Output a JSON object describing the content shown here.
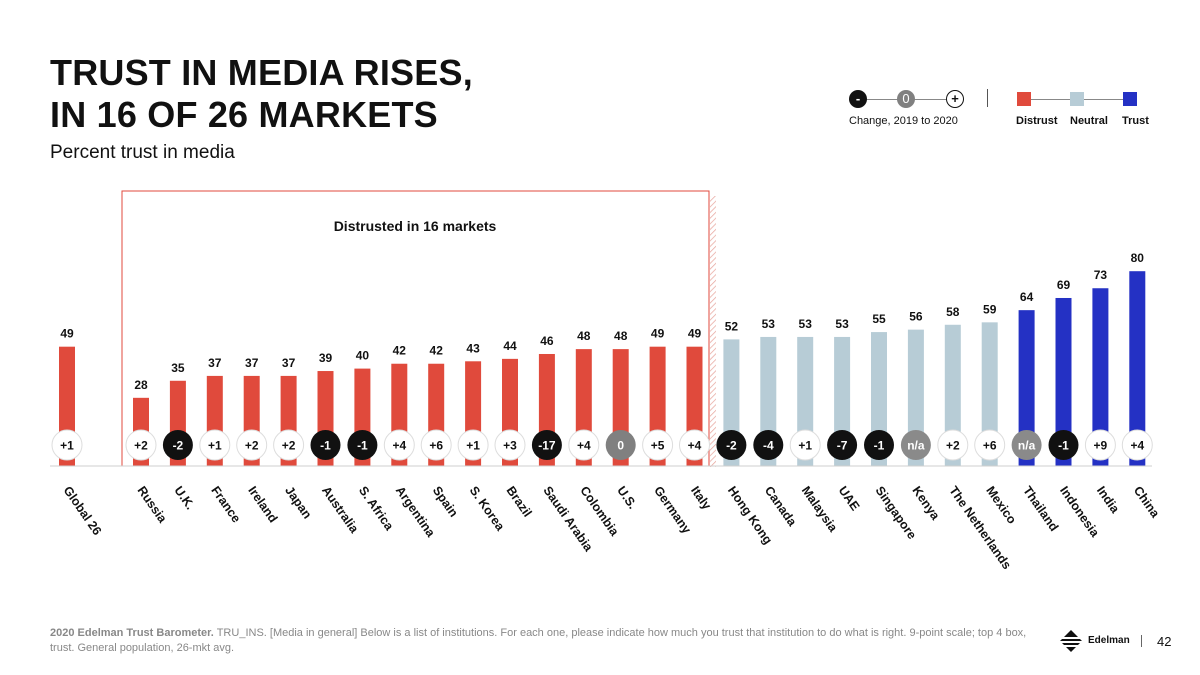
{
  "title_line1": "TRUST IN MEDIA RISES,",
  "title_line2": "IN 16 OF 26 MARKETS",
  "subtitle": "Percent trust in media",
  "legend": {
    "change_minus": "-",
    "change_zero": "0",
    "change_plus": "+",
    "change_label": "Change, 2019 to 2020",
    "distrust_label": "Distrust",
    "neutral_label": "Neutral",
    "trust_label": "Trust"
  },
  "colors": {
    "distrust": "#e04a3c",
    "neutral": "#b7ccd6",
    "trust": "#2431c4",
    "change_negative": "#111111",
    "change_zero": "#808080",
    "change_na": "#8a8a8a",
    "change_positive": "#ffffff"
  },
  "chart_data": {
    "type": "bar",
    "title": "Percent trust in media",
    "annotation": "Distrusted in 16 markets",
    "categories": [
      "Global 26",
      "Russia",
      "U.K.",
      "France",
      "Ireland",
      "Japan",
      "Australia",
      "S. Africa",
      "Argentina",
      "Spain",
      "S. Korea",
      "Brazil",
      "Saudi Arabia",
      "Colombia",
      "U.S.",
      "Germany",
      "Italy",
      "Hong Kong",
      "Canada",
      "Malaysia",
      "UAE",
      "Singapore",
      "Kenya",
      "The Netherlands",
      "Mexico",
      "Thailand",
      "Indonesia",
      "India",
      "China"
    ],
    "values": [
      49,
      28,
      35,
      37,
      37,
      37,
      39,
      40,
      42,
      42,
      43,
      44,
      46,
      48,
      48,
      49,
      49,
      52,
      53,
      53,
      53,
      55,
      56,
      58,
      59,
      64,
      69,
      73,
      80
    ],
    "changes": [
      "+1",
      "+2",
      "-2",
      "+1",
      "+2",
      "+2",
      "-1",
      "-1",
      "+4",
      "+6",
      "+1",
      "+3",
      "-17",
      "+4",
      "0",
      "+5",
      "+4",
      "-2",
      "-4",
      "+1",
      "-7",
      "-1",
      "n/a",
      "+2",
      "+6",
      "n/a",
      "-1",
      "+9",
      "+4"
    ],
    "categories_level": [
      "distrust",
      "distrust",
      "distrust",
      "distrust",
      "distrust",
      "distrust",
      "distrust",
      "distrust",
      "distrust",
      "distrust",
      "distrust",
      "distrust",
      "distrust",
      "distrust",
      "distrust",
      "distrust",
      "distrust",
      "neutral",
      "neutral",
      "neutral",
      "neutral",
      "neutral",
      "neutral",
      "neutral",
      "neutral",
      "trust",
      "trust",
      "trust",
      "trust"
    ],
    "ylim": [
      0,
      100
    ],
    "xlabel": "",
    "ylabel": ""
  },
  "footnote_bold": "2020 Edelman Trust Barometer.",
  "footnote_text": " TRU_INS. [Media in general] Below is a list of institutions. For each one, please indicate how much you trust that institution to do what is right. 9-point scale; top 4 box, trust. General population, 26-mkt avg.",
  "brand": "Edelman",
  "page_number": "42"
}
